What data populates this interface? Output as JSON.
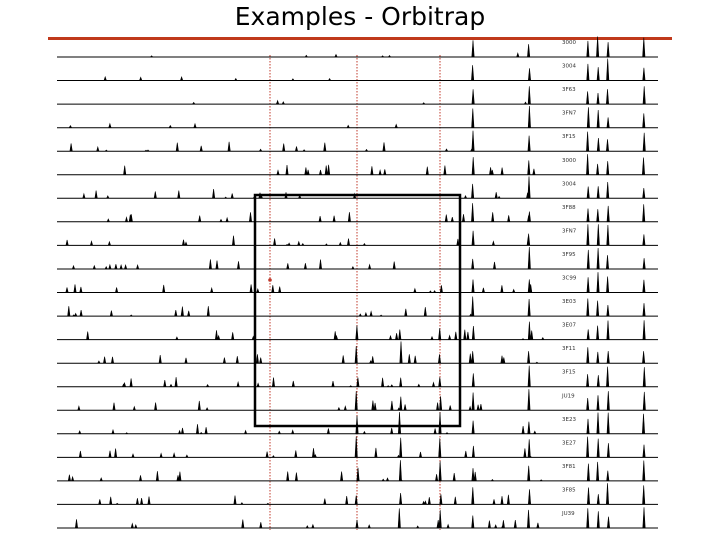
{
  "title": "Examples - Orbitrap",
  "colors": {
    "title_rule": "#c0391b",
    "guide_lines": "#c0392b",
    "trace": "#000000",
    "highlight_box": "#000000"
  },
  "spectra_labels": [
    "3000",
    "3004",
    "3F63",
    "3FN7",
    "3F15",
    "3000",
    "3004",
    "3F88",
    "3FN7",
    "3F95",
    "3C99",
    "3E03",
    "3E07",
    "3F11",
    "3F15",
    "JU19",
    "3E23",
    "3E27",
    "3F81",
    "3F85",
    "JU39"
  ]
}
